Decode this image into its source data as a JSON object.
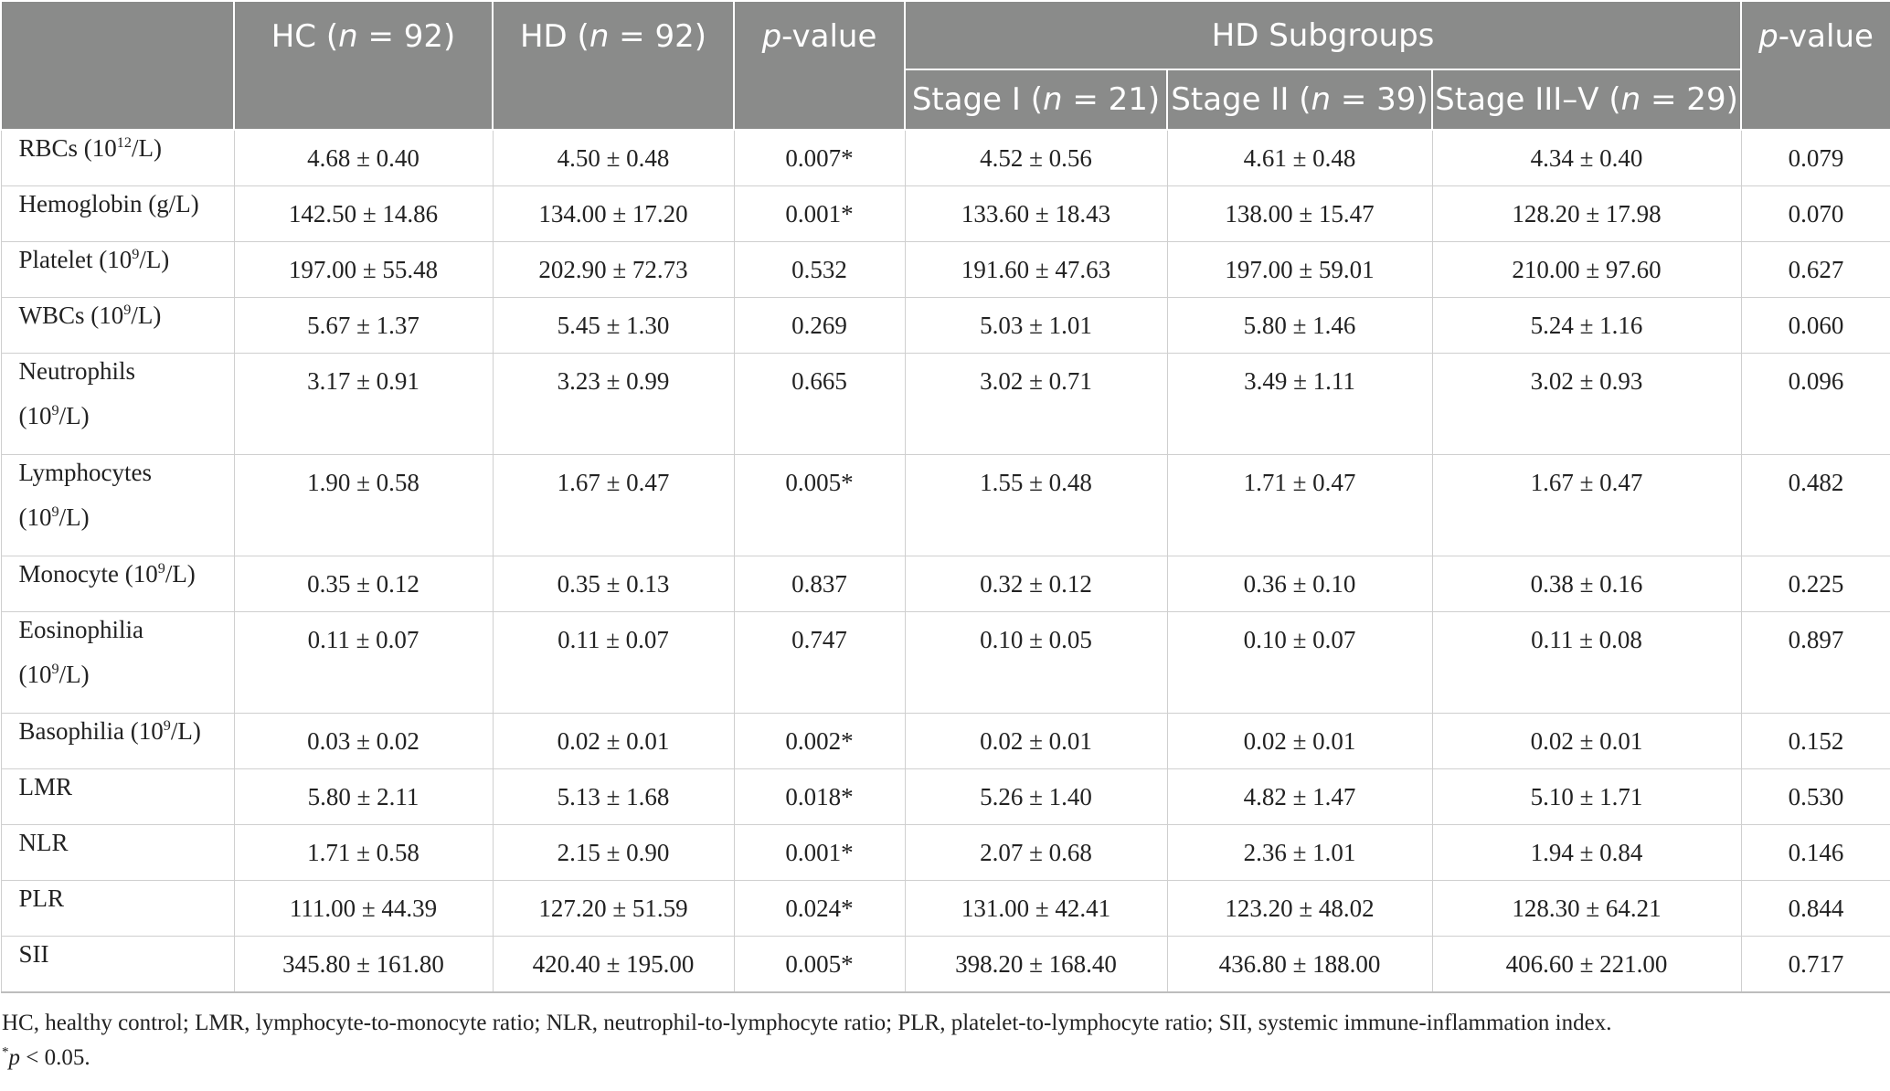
{
  "header": {
    "columns": [
      "",
      "HC (",
      "HD (",
      "p",
      "HD Subgroups",
      "p"
    ],
    "hc": {
      "pre": "HC (",
      "n": "n",
      "eq": " = 92)"
    },
    "hd": {
      "pre": "HD (",
      "n": "n",
      "eq": " = 92)"
    },
    "pval1": {
      "p": "p",
      "rest": "-value"
    },
    "group": "HD Subgroups",
    "pval2": {
      "p": "p",
      "rest": "-value"
    },
    "stage1": {
      "pre": "Stage I (",
      "n": "n",
      "eq": " = 21)"
    },
    "stage2": {
      "pre": "Stage II (",
      "n": "n",
      "eq": " = 39)"
    },
    "stage3": {
      "pre": "Stage III–V (",
      "n": "n",
      "eq": " = 29)"
    }
  },
  "rows": [
    {
      "label_a": "RBCs (10",
      "sup": "12",
      "label_b": "/L)",
      "hc": "4.68 ± 0.40",
      "hd": "4.50 ± 0.48",
      "p1": "0.007*",
      "s1": "4.52 ± 0.56",
      "s2": "4.61 ± 0.48",
      "s3": "4.34 ± 0.40",
      "p2": "0.079"
    },
    {
      "label_a": "Hemoglobin (g/L)",
      "sup": "",
      "label_b": "",
      "hc": "142.50 ± 14.86",
      "hd": "134.00 ± 17.20",
      "p1": "0.001*",
      "s1": "133.60 ± 18.43",
      "s2": "138.00 ± 15.47",
      "s3": "128.20 ± 17.98",
      "p2": "0.070"
    },
    {
      "label_a": "Platelet (10",
      "sup": "9",
      "label_b": "/L)",
      "hc": "197.00 ± 55.48",
      "hd": "202.90 ± 72.73",
      "p1": "0.532",
      "s1": "191.60 ± 47.63",
      "s2": "197.00 ± 59.01",
      "s3": "210.00 ± 97.60",
      "p2": "0.627"
    },
    {
      "label_a": "WBCs (10",
      "sup": "9",
      "label_b": "/L)",
      "hc": "5.67 ± 1.37",
      "hd": "5.45 ± 1.30",
      "p1": "0.269",
      "s1": "5.03 ± 1.01",
      "s2": "5.80 ± 1.46",
      "s3": "5.24 ± 1.16",
      "p2": "0.060"
    },
    {
      "label_a": "Neutrophils",
      "label_c": "(10",
      "sup": "9",
      "label_b": "/L)",
      "hc": "3.17 ± 0.91",
      "hd": "3.23 ± 0.99",
      "p1": "0.665",
      "s1": "3.02 ± 0.71",
      "s2": "3.49 ± 1.11",
      "s3": "3.02 ± 0.93",
      "p2": "0.096"
    },
    {
      "label_a": "Lymphocytes",
      "label_c": "(10",
      "sup": "9",
      "label_b": "/L)",
      "hc": "1.90 ± 0.58",
      "hd": "1.67 ± 0.47",
      "p1": "0.005*",
      "s1": "1.55 ± 0.48",
      "s2": "1.71 ± 0.47",
      "s3": "1.67 ± 0.47",
      "p2": "0.482"
    },
    {
      "label_a": "Monocyte (10",
      "sup": "9",
      "label_b": "/L)",
      "hc": "0.35 ± 0.12",
      "hd": "0.35 ± 0.13",
      "p1": "0.837",
      "s1": "0.32 ± 0.12",
      "s2": "0.36 ± 0.10",
      "s3": "0.38 ± 0.16",
      "p2": "0.225"
    },
    {
      "label_a": "Eosinophilia",
      "label_c": "(10",
      "sup": "9",
      "label_b": "/L)",
      "hc": "0.11 ± 0.07",
      "hd": "0.11 ± 0.07",
      "p1": "0.747",
      "s1": "0.10 ± 0.05",
      "s2": "0.10 ± 0.07",
      "s3": "0.11 ± 0.08",
      "p2": "0.897"
    },
    {
      "label_a": "Basophilia (10",
      "sup": "9",
      "label_b": "/L)",
      "hc": "0.03 ± 0.02",
      "hd": "0.02 ± 0.01",
      "p1": "0.002*",
      "s1": "0.02 ± 0.01",
      "s2": "0.02 ± 0.01",
      "s3": "0.02 ± 0.01",
      "p2": "0.152"
    },
    {
      "label_a": "LMR",
      "sup": "",
      "label_b": "",
      "hc": "5.80 ± 2.11",
      "hd": "5.13 ± 1.68",
      "p1": "0.018*",
      "s1": "5.26 ± 1.40",
      "s2": "4.82 ± 1.47",
      "s3": "5.10 ± 1.71",
      "p2": "0.530"
    },
    {
      "label_a": "NLR",
      "sup": "",
      "label_b": "",
      "hc": "1.71 ± 0.58",
      "hd": "2.15 ± 0.90",
      "p1": "0.001*",
      "s1": "2.07 ± 0.68",
      "s2": "2.36 ± 1.01",
      "s3": "1.94 ± 0.84",
      "p2": "0.146"
    },
    {
      "label_a": "PLR",
      "sup": "",
      "label_b": "",
      "hc": "111.00 ± 44.39",
      "hd": "127.20 ± 51.59",
      "p1": "0.024*",
      "s1": "131.00 ± 42.41",
      "s2": "123.20 ± 48.02",
      "s3": "128.30 ± 64.21",
      "p2": "0.844"
    },
    {
      "label_a": "SII",
      "sup": "",
      "label_b": "",
      "hc": "345.80 ± 161.80",
      "hd": "420.40 ± 195.00",
      "p1": "0.005*",
      "s1": "398.20 ± 168.40",
      "s2": "436.80 ± 188.00",
      "s3": "406.60 ± 221.00",
      "p2": "0.717"
    }
  ],
  "footnotes": {
    "abbrev": "HC, healthy control; LMR, lymphocyte-to-monocyte ratio; NLR, neutrophil-to-lymphocyte ratio; PLR, platelet-to-lymphocyte ratio; SII, systemic immune-inflammation index.",
    "sig_star": "*",
    "sig_p": "p",
    "sig_rest": " < 0.05."
  }
}
